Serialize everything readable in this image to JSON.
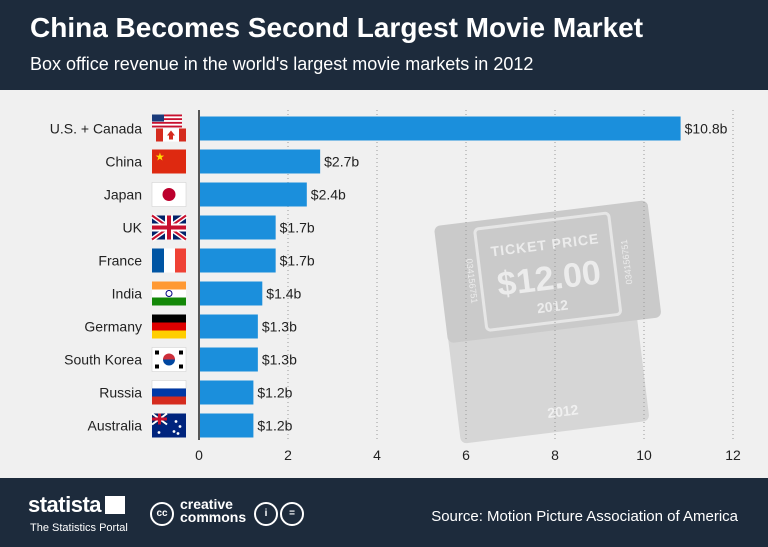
{
  "header": {
    "title": "China Becomes Second Largest Movie Market",
    "subtitle": "Box office revenue in the world's largest movie markets in 2012"
  },
  "watermark": {
    "line1": "TICKET PRICE",
    "price": "$12.00",
    "year": "2012",
    "serial": "034156751",
    "back_year": "2012"
  },
  "chart_data": {
    "type": "bar",
    "orientation": "horizontal",
    "title": "China Becomes Second Largest Movie Market",
    "subtitle": "Box office revenue in the world's largest movie markets in 2012",
    "categories": [
      "U.S. + Canada",
      "China",
      "Japan",
      "UK",
      "France",
      "India",
      "Germany",
      "South Korea",
      "Russia",
      "Australia"
    ],
    "values": [
      10.8,
      2.7,
      2.4,
      1.7,
      1.7,
      1.4,
      1.3,
      1.3,
      1.2,
      1.2
    ],
    "data_labels": [
      "$10.8b",
      "$2.7b",
      "$2.4b",
      "$1.7b",
      "$1.7b",
      "$1.4b",
      "$1.3b",
      "$1.3b",
      "$1.2b",
      "$1.2b"
    ],
    "flags": [
      "us-canada-flag",
      "china-flag",
      "japan-flag",
      "uk-flag",
      "france-flag",
      "india-flag",
      "germany-flag",
      "south-korea-flag",
      "russia-flag",
      "australia-flag"
    ],
    "xlim": [
      0,
      12
    ],
    "xticks": [
      0,
      2,
      4,
      6,
      8,
      10,
      12
    ],
    "xtick_labels": [
      "0",
      "2",
      "4",
      "6",
      "8",
      "10",
      "12"
    ],
    "xlabel": "",
    "ylabel": "",
    "grid": true,
    "bar_color": "#1b8fdc"
  },
  "footer": {
    "brand": "statista",
    "tagline": "The Statistics Portal",
    "cc_line1": "creative",
    "cc_line2": "commons",
    "cc_badge": "cc",
    "source": "Source: Motion Picture Association of America"
  }
}
